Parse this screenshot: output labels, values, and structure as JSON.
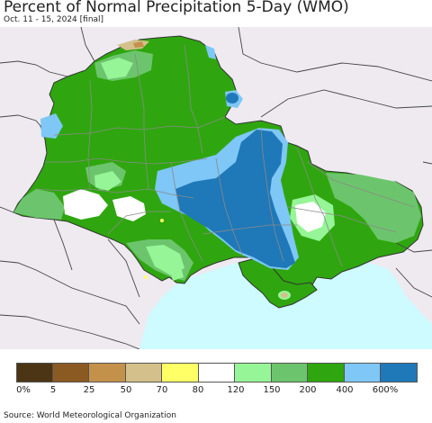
{
  "header": {
    "title": "Percent of Normal Precipitation 5-Day (WMO)",
    "subtitle": "Oct. 11 - 15, 2024 [final]"
  },
  "colors": {
    "background_land": "#eeeaf0",
    "sea": "#cdfbff",
    "border_line": "#333333",
    "oblast_line": "#8a8a8a"
  },
  "legend": {
    "colors": [
      "#4b3515",
      "#8b5a22",
      "#c4914b",
      "#d3c08b",
      "#ffff66",
      "#ffffff",
      "#96f596",
      "#6cc56c",
      "#2fa60f",
      "#7ec7f6",
      "#1f78b8"
    ],
    "labels": [
      "0%",
      "5",
      "25",
      "50",
      "70",
      "80",
      "120",
      "150",
      "200",
      "400",
      "600%"
    ]
  },
  "footer": {
    "source": "Source: World Meteorological Organization"
  }
}
